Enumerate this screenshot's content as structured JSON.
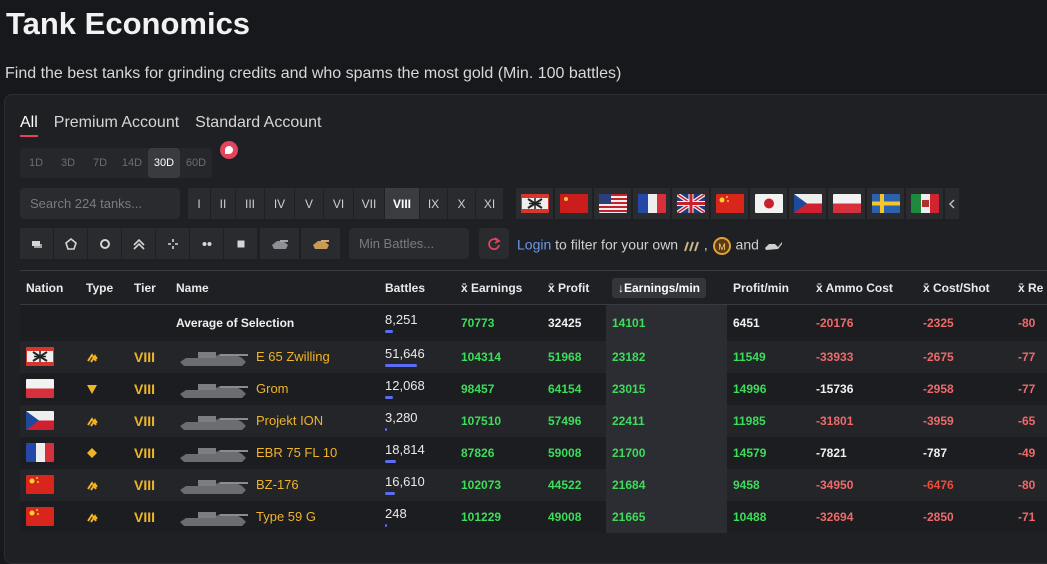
{
  "page": {
    "title": "Tank Economics",
    "subtitle": "Find the best tanks for grinding credits and who spams the most gold (Min. 100 battles)"
  },
  "tabs": [
    "All",
    "Premium Account",
    "Standard Account"
  ],
  "days": [
    "1D",
    "3D",
    "7D",
    "14D",
    "30D",
    "60D"
  ],
  "search": {
    "placeholder": "Search 224 tanks..."
  },
  "tiers": [
    "I",
    "II",
    "III",
    "IV",
    "V",
    "VI",
    "VII",
    "VIII",
    "IX",
    "X",
    "XI"
  ],
  "active_tier": "VIII",
  "nation_filters": [
    "germany",
    "ussr",
    "usa",
    "france",
    "uk",
    "china",
    "japan",
    "czech",
    "poland",
    "sweden",
    "italy"
  ],
  "min_battles": {
    "placeholder": "Min Battles..."
  },
  "login": {
    "link": "Login",
    "text": "to filter for your own",
    "sep": ",",
    "and": "and"
  },
  "columns": [
    "Nation",
    "Type",
    "Tier",
    "Name",
    "Battles",
    "x̄ Earnings",
    "x̄ Profit",
    "↓Earnings/min",
    "Profit/min",
    "x̄ Ammo Cost",
    "x̄ Cost/Shot",
    "x̄ Re"
  ],
  "average": {
    "label": "Average of Selection",
    "battles": "8,251",
    "earnings": "70773",
    "profit": "32425",
    "earnings_min": "14101",
    "profit_min": "6451",
    "ammo": "-20176",
    "cost_shot": "-2325",
    "re": "-80"
  },
  "rows": [
    {
      "nation": "germany",
      "type": "medium",
      "tier": "VIII",
      "name": "E 65 Zwilling",
      "battles": "51,646",
      "battles_share": 0.85,
      "earnings": "104314",
      "profit": "51968",
      "earnings_min": "23182",
      "profit_min": "11549",
      "ammo": "-33933",
      "cost_shot": "-2675",
      "re": "-77"
    },
    {
      "nation": "poland",
      "type": "td",
      "tier": "VIII",
      "name": "Grom",
      "battles": "12,068",
      "battles_share": 0.2,
      "earnings": "98457",
      "profit": "64154",
      "earnings_min": "23015",
      "profit_min": "14996",
      "ammo": "-15736",
      "cost_shot": "-2958",
      "re": "-77"
    },
    {
      "nation": "czech",
      "type": "medium",
      "tier": "VIII",
      "name": "Projekt ION",
      "battles": "3,280",
      "battles_share": 0.05,
      "earnings": "107510",
      "profit": "57496",
      "earnings_min": "22411",
      "profit_min": "11985",
      "ammo": "-31801",
      "cost_shot": "-3959",
      "re": "-65"
    },
    {
      "nation": "france",
      "type": "light",
      "tier": "VIII",
      "name": "EBR 75 FL 10",
      "battles": "18,814",
      "battles_share": 0.3,
      "earnings": "87826",
      "profit": "59008",
      "earnings_min": "21700",
      "profit_min": "14579",
      "ammo": "-7821",
      "cost_shot": "-787",
      "re": "-49"
    },
    {
      "nation": "china",
      "type": "medium",
      "tier": "VIII",
      "name": "BZ-176",
      "battles": "16,610",
      "battles_share": 0.27,
      "earnings": "102073",
      "profit": "44522",
      "earnings_min": "21684",
      "profit_min": "9458",
      "ammo": "-34950",
      "cost_shot": "-6476",
      "re": "-80"
    },
    {
      "nation": "china",
      "type": "medium",
      "tier": "VIII",
      "name": "Type 59 G",
      "battles": "248",
      "battles_share": 0.01,
      "earnings": "101229",
      "profit": "49008",
      "earnings_min": "21665",
      "profit_min": "10488",
      "ammo": "-32694",
      "cost_shot": "-2850",
      "re": "-71"
    }
  ],
  "colors": {
    "accent": "#e0455c",
    "positive": "#3ddc5a",
    "negative": "#ee6a6a",
    "gold": "#f0b429",
    "link": "#6c98e8"
  }
}
